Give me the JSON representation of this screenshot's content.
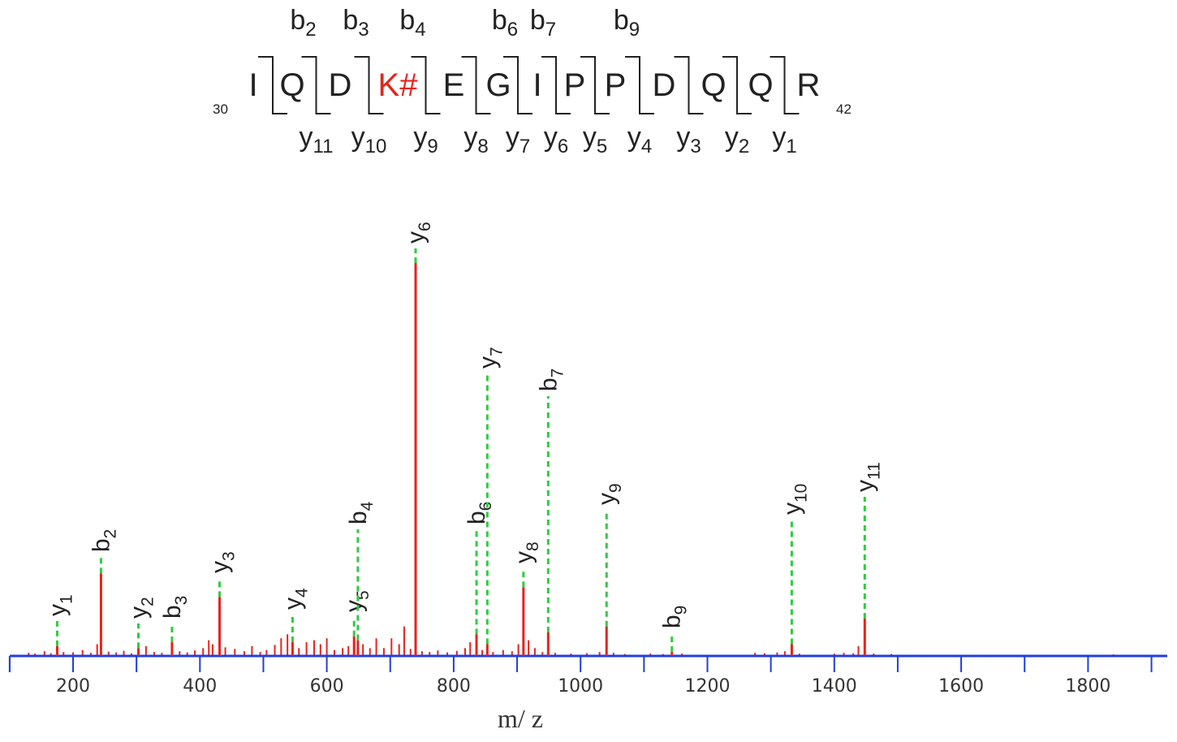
{
  "peptide": {
    "start_position": "30",
    "end_position": "42",
    "residues": [
      "I",
      "Q",
      "D",
      "K#",
      "E",
      "G",
      "I",
      "P",
      "P",
      "D",
      "Q",
      "Q",
      "R"
    ],
    "modified_residue_index": 3,
    "modification_color": "#e8221a",
    "b_labels": [
      {
        "ion": "b",
        "num": "2",
        "after_residue": 1
      },
      {
        "ion": "b",
        "num": "3",
        "after_residue": 2
      },
      {
        "ion": "b",
        "num": "4",
        "after_residue": 3
      },
      {
        "ion": "b",
        "num": "6",
        "after_residue": 5
      },
      {
        "ion": "b",
        "num": "7",
        "after_residue": 6
      },
      {
        "ion": "b",
        "num": "9",
        "after_residue": 8
      }
    ],
    "y_labels": [
      {
        "ion": "y",
        "num": "11",
        "after_residue": 1
      },
      {
        "ion": "y",
        "num": "10",
        "after_residue": 2
      },
      {
        "ion": "y",
        "num": "9",
        "after_residue": 3
      },
      {
        "ion": "y",
        "num": "8",
        "after_residue": 4
      },
      {
        "ion": "y",
        "num": "7",
        "after_residue": 5
      },
      {
        "ion": "y",
        "num": "6",
        "after_residue": 6
      },
      {
        "ion": "y",
        "num": "5",
        "after_residue": 7
      },
      {
        "ion": "y",
        "num": "4",
        "after_residue": 8
      },
      {
        "ion": "y",
        "num": "3",
        "after_residue": 9
      },
      {
        "ion": "y",
        "num": "2",
        "after_residue": 10
      },
      {
        "ion": "y",
        "num": "1",
        "after_residue": 11
      }
    ]
  },
  "chart_data": {
    "type": "bar",
    "title": "",
    "xlabel": "m/ z",
    "ylabel": "",
    "xlim": [
      100,
      1910
    ],
    "ylim": [
      0,
      100
    ],
    "x_ticks": [
      200,
      400,
      600,
      800,
      1000,
      1200,
      1400,
      1600,
      1800
    ],
    "x_tick_interval_minor": 100,
    "grid": false,
    "legend": "none",
    "colors": {
      "peak": "#e8221a",
      "annotation_line": "#2ecc40",
      "axis": "#1f3fe0",
      "text": "#222222"
    },
    "annotated_peaks": [
      {
        "ion": "y",
        "num": "1",
        "mz": 175,
        "intensity": 2.5
      },
      {
        "ion": "b",
        "num": "2",
        "mz": 244,
        "intensity": 21
      },
      {
        "ion": "y",
        "num": "2",
        "mz": 303,
        "intensity": 2
      },
      {
        "ion": "b",
        "num": "3",
        "mz": 356,
        "intensity": 3.5
      },
      {
        "ion": "y",
        "num": "3",
        "mz": 431,
        "intensity": 15
      },
      {
        "ion": "y",
        "num": "4",
        "mz": 546,
        "intensity": 3.5
      },
      {
        "ion": "y",
        "num": "5",
        "mz": 643,
        "intensity": 5
      },
      {
        "ion": "b",
        "num": "4",
        "mz": 649,
        "intensity": 4
      },
      {
        "ion": "y",
        "num": "6",
        "mz": 740,
        "intensity": 100
      },
      {
        "ion": "b",
        "num": "6",
        "mz": 836,
        "intensity": 5.5
      },
      {
        "ion": "y",
        "num": "7",
        "mz": 853,
        "intensity": 3
      },
      {
        "ion": "y",
        "num": "8",
        "mz": 910,
        "intensity": 17.5
      },
      {
        "ion": "b",
        "num": "7",
        "mz": 949,
        "intensity": 6
      },
      {
        "ion": "y",
        "num": "9",
        "mz": 1041,
        "intensity": 7.5
      },
      {
        "ion": "b",
        "num": "9",
        "mz": 1144,
        "intensity": 1
      },
      {
        "ion": "y",
        "num": "10",
        "mz": 1333,
        "intensity": 3
      },
      {
        "ion": "y",
        "num": "11",
        "mz": 1448,
        "intensity": 9.5
      }
    ],
    "other_peaks": [
      {
        "mz": 130,
        "intensity": 0.8
      },
      {
        "mz": 140,
        "intensity": 0.6
      },
      {
        "mz": 155,
        "intensity": 1.2
      },
      {
        "mz": 165,
        "intensity": 0.7
      },
      {
        "mz": 185,
        "intensity": 1.0
      },
      {
        "mz": 200,
        "intensity": 0.9
      },
      {
        "mz": 215,
        "intensity": 1.5
      },
      {
        "mz": 228,
        "intensity": 0.8
      },
      {
        "mz": 238,
        "intensity": 3.0
      },
      {
        "mz": 256,
        "intensity": 1.1
      },
      {
        "mz": 268,
        "intensity": 0.9
      },
      {
        "mz": 280,
        "intensity": 1.3
      },
      {
        "mz": 292,
        "intensity": 0.7
      },
      {
        "mz": 315,
        "intensity": 2.5
      },
      {
        "mz": 328,
        "intensity": 1.0
      },
      {
        "mz": 340,
        "intensity": 0.8
      },
      {
        "mz": 368,
        "intensity": 1.2
      },
      {
        "mz": 380,
        "intensity": 0.9
      },
      {
        "mz": 392,
        "intensity": 1.4
      },
      {
        "mz": 405,
        "intensity": 2.0
      },
      {
        "mz": 414,
        "intensity": 4.0
      },
      {
        "mz": 420,
        "intensity": 3.0
      },
      {
        "mz": 440,
        "intensity": 2.2
      },
      {
        "mz": 455,
        "intensity": 1.8
      },
      {
        "mz": 470,
        "intensity": 1.2
      },
      {
        "mz": 482,
        "intensity": 2.5
      },
      {
        "mz": 495,
        "intensity": 1.0
      },
      {
        "mz": 505,
        "intensity": 1.5
      },
      {
        "mz": 518,
        "intensity": 2.8
      },
      {
        "mz": 528,
        "intensity": 4.5
      },
      {
        "mz": 538,
        "intensity": 5.5
      },
      {
        "mz": 556,
        "intensity": 2.0
      },
      {
        "mz": 568,
        "intensity": 3.5
      },
      {
        "mz": 580,
        "intensity": 4.0
      },
      {
        "mz": 590,
        "intensity": 3.0
      },
      {
        "mz": 600,
        "intensity": 4.5
      },
      {
        "mz": 612,
        "intensity": 1.5
      },
      {
        "mz": 625,
        "intensity": 2.0
      },
      {
        "mz": 634,
        "intensity": 2.5
      },
      {
        "mz": 657,
        "intensity": 3.0
      },
      {
        "mz": 668,
        "intensity": 2.0
      },
      {
        "mz": 678,
        "intensity": 4.5
      },
      {
        "mz": 690,
        "intensity": 2.0
      },
      {
        "mz": 702,
        "intensity": 4.5
      },
      {
        "mz": 714,
        "intensity": 3.0
      },
      {
        "mz": 722,
        "intensity": 7.5
      },
      {
        "mz": 732,
        "intensity": 1.8
      },
      {
        "mz": 750,
        "intensity": 1.2
      },
      {
        "mz": 762,
        "intensity": 1.0
      },
      {
        "mz": 775,
        "intensity": 1.4
      },
      {
        "mz": 790,
        "intensity": 0.9
      },
      {
        "mz": 805,
        "intensity": 1.3
      },
      {
        "mz": 818,
        "intensity": 2.0
      },
      {
        "mz": 826,
        "intensity": 3.5
      },
      {
        "mz": 845,
        "intensity": 1.5
      },
      {
        "mz": 862,
        "intensity": 1.0
      },
      {
        "mz": 878,
        "intensity": 1.5
      },
      {
        "mz": 892,
        "intensity": 1.2
      },
      {
        "mz": 902,
        "intensity": 3.0
      },
      {
        "mz": 918,
        "intensity": 4.0
      },
      {
        "mz": 928,
        "intensity": 2.0
      },
      {
        "mz": 940,
        "intensity": 1.0
      },
      {
        "mz": 960,
        "intensity": 0.8
      },
      {
        "mz": 985,
        "intensity": 0.6
      },
      {
        "mz": 1010,
        "intensity": 0.7
      },
      {
        "mz": 1030,
        "intensity": 1.0
      },
      {
        "mz": 1052,
        "intensity": 0.8
      },
      {
        "mz": 1070,
        "intensity": 0.5
      },
      {
        "mz": 1110,
        "intensity": 0.6
      },
      {
        "mz": 1130,
        "intensity": 0.5
      },
      {
        "mz": 1160,
        "intensity": 0.6
      },
      {
        "mz": 1275,
        "intensity": 0.8
      },
      {
        "mz": 1290,
        "intensity": 0.7
      },
      {
        "mz": 1310,
        "intensity": 0.9
      },
      {
        "mz": 1322,
        "intensity": 1.2
      },
      {
        "mz": 1345,
        "intensity": 0.6
      },
      {
        "mz": 1400,
        "intensity": 0.6
      },
      {
        "mz": 1415,
        "intensity": 0.8
      },
      {
        "mz": 1430,
        "intensity": 0.7
      },
      {
        "mz": 1438,
        "intensity": 2.5
      },
      {
        "mz": 1462,
        "intensity": 0.6
      },
      {
        "mz": 1490,
        "intensity": 0.5
      },
      {
        "mz": 1840,
        "intensity": 0.4
      }
    ]
  }
}
